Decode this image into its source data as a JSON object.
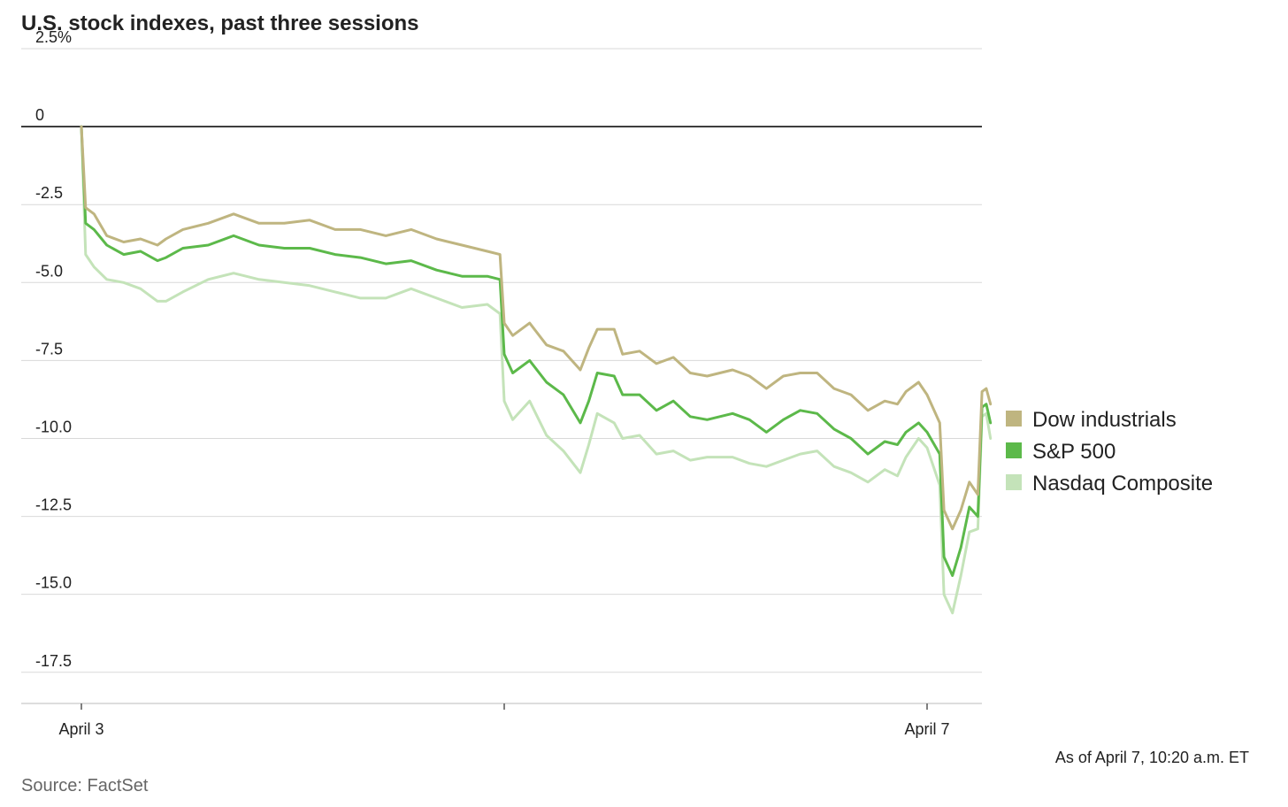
{
  "chart_data": {
    "type": "line",
    "title": "U.S. stock indexes, past three sessions",
    "y_axis": {
      "min": -18.5,
      "max": 2.5,
      "ticks": [
        2.5,
        0,
        -2.5,
        -5.0,
        -7.5,
        -10.0,
        -12.5,
        -15.0,
        -17.5
      ],
      "tick_labels": [
        "2.5%",
        "0",
        "-2.5",
        "-5.0",
        "-7.5",
        "-10.0",
        "-12.5",
        "-15.0",
        "-17.5"
      ]
    },
    "x_axis": {
      "min": 0,
      "max": 2.13,
      "ticks": [
        0,
        1,
        2
      ],
      "tick_labels": [
        "April 3",
        "",
        "April 7"
      ]
    },
    "grid": true,
    "legend_position": "right",
    "series": [
      {
        "name": "Dow industrials",
        "color": "#bfb580",
        "points": [
          [
            0,
            0
          ],
          [
            0.01,
            -2.6
          ],
          [
            0.03,
            -2.8
          ],
          [
            0.06,
            -3.5
          ],
          [
            0.1,
            -3.7
          ],
          [
            0.14,
            -3.6
          ],
          [
            0.18,
            -3.8
          ],
          [
            0.2,
            -3.6
          ],
          [
            0.24,
            -3.3
          ],
          [
            0.3,
            -3.1
          ],
          [
            0.36,
            -2.8
          ],
          [
            0.42,
            -3.1
          ],
          [
            0.48,
            -3.1
          ],
          [
            0.54,
            -3.0
          ],
          [
            0.6,
            -3.3
          ],
          [
            0.66,
            -3.3
          ],
          [
            0.72,
            -3.5
          ],
          [
            0.78,
            -3.3
          ],
          [
            0.84,
            -3.6
          ],
          [
            0.9,
            -3.8
          ],
          [
            0.96,
            -4.0
          ],
          [
            0.99,
            -4.1
          ],
          [
            1.0,
            -6.3
          ],
          [
            1.02,
            -6.7
          ],
          [
            1.06,
            -6.3
          ],
          [
            1.1,
            -7.0
          ],
          [
            1.14,
            -7.2
          ],
          [
            1.18,
            -7.8
          ],
          [
            1.2,
            -7.1
          ],
          [
            1.22,
            -6.5
          ],
          [
            1.26,
            -6.5
          ],
          [
            1.28,
            -7.3
          ],
          [
            1.32,
            -7.2
          ],
          [
            1.36,
            -7.6
          ],
          [
            1.4,
            -7.4
          ],
          [
            1.44,
            -7.9
          ],
          [
            1.48,
            -8.0
          ],
          [
            1.54,
            -7.8
          ],
          [
            1.58,
            -8.0
          ],
          [
            1.62,
            -8.4
          ],
          [
            1.66,
            -8.0
          ],
          [
            1.7,
            -7.9
          ],
          [
            1.74,
            -7.9
          ],
          [
            1.78,
            -8.4
          ],
          [
            1.82,
            -8.6
          ],
          [
            1.86,
            -9.1
          ],
          [
            1.9,
            -8.8
          ],
          [
            1.93,
            -8.9
          ],
          [
            1.95,
            -8.5
          ],
          [
            1.98,
            -8.2
          ],
          [
            2.0,
            -8.6
          ],
          [
            2.03,
            -9.5
          ],
          [
            2.04,
            -12.3
          ],
          [
            2.06,
            -12.9
          ],
          [
            2.08,
            -12.3
          ],
          [
            2.1,
            -11.4
          ],
          [
            2.12,
            -11.8
          ],
          [
            2.13,
            -8.5
          ],
          [
            2.14,
            -8.4
          ],
          [
            2.15,
            -8.9
          ]
        ]
      },
      {
        "name": "S&P 500",
        "color": "#5cb94a",
        "points": [
          [
            0,
            0
          ],
          [
            0.01,
            -3.1
          ],
          [
            0.03,
            -3.3
          ],
          [
            0.06,
            -3.8
          ],
          [
            0.1,
            -4.1
          ],
          [
            0.14,
            -4.0
          ],
          [
            0.18,
            -4.3
          ],
          [
            0.2,
            -4.2
          ],
          [
            0.24,
            -3.9
          ],
          [
            0.3,
            -3.8
          ],
          [
            0.36,
            -3.5
          ],
          [
            0.42,
            -3.8
          ],
          [
            0.48,
            -3.9
          ],
          [
            0.54,
            -3.9
          ],
          [
            0.6,
            -4.1
          ],
          [
            0.66,
            -4.2
          ],
          [
            0.72,
            -4.4
          ],
          [
            0.78,
            -4.3
          ],
          [
            0.84,
            -4.6
          ],
          [
            0.9,
            -4.8
          ],
          [
            0.96,
            -4.8
          ],
          [
            0.99,
            -4.9
          ],
          [
            1.0,
            -7.3
          ],
          [
            1.02,
            -7.9
          ],
          [
            1.06,
            -7.5
          ],
          [
            1.1,
            -8.2
          ],
          [
            1.14,
            -8.6
          ],
          [
            1.18,
            -9.5
          ],
          [
            1.2,
            -8.8
          ],
          [
            1.22,
            -7.9
          ],
          [
            1.26,
            -8.0
          ],
          [
            1.28,
            -8.6
          ],
          [
            1.32,
            -8.6
          ],
          [
            1.36,
            -9.1
          ],
          [
            1.4,
            -8.8
          ],
          [
            1.44,
            -9.3
          ],
          [
            1.48,
            -9.4
          ],
          [
            1.54,
            -9.2
          ],
          [
            1.58,
            -9.4
          ],
          [
            1.62,
            -9.8
          ],
          [
            1.66,
            -9.4
          ],
          [
            1.7,
            -9.1
          ],
          [
            1.74,
            -9.2
          ],
          [
            1.78,
            -9.7
          ],
          [
            1.82,
            -10.0
          ],
          [
            1.86,
            -10.5
          ],
          [
            1.9,
            -10.1
          ],
          [
            1.93,
            -10.2
          ],
          [
            1.95,
            -9.8
          ],
          [
            1.98,
            -9.5
          ],
          [
            2.0,
            -9.8
          ],
          [
            2.03,
            -10.5
          ],
          [
            2.04,
            -13.8
          ],
          [
            2.06,
            -14.4
          ],
          [
            2.08,
            -13.5
          ],
          [
            2.1,
            -12.2
          ],
          [
            2.12,
            -12.5
          ],
          [
            2.13,
            -9.0
          ],
          [
            2.14,
            -8.9
          ],
          [
            2.15,
            -9.5
          ]
        ]
      },
      {
        "name": "Nasdaq Composite",
        "color": "#c4e3b9",
        "points": [
          [
            0,
            0
          ],
          [
            0.01,
            -4.1
          ],
          [
            0.03,
            -4.5
          ],
          [
            0.06,
            -4.9
          ],
          [
            0.1,
            -5.0
          ],
          [
            0.14,
            -5.2
          ],
          [
            0.18,
            -5.6
          ],
          [
            0.2,
            -5.6
          ],
          [
            0.24,
            -5.3
          ],
          [
            0.3,
            -4.9
          ],
          [
            0.36,
            -4.7
          ],
          [
            0.42,
            -4.9
          ],
          [
            0.48,
            -5.0
          ],
          [
            0.54,
            -5.1
          ],
          [
            0.6,
            -5.3
          ],
          [
            0.66,
            -5.5
          ],
          [
            0.72,
            -5.5
          ],
          [
            0.78,
            -5.2
          ],
          [
            0.84,
            -5.5
          ],
          [
            0.9,
            -5.8
          ],
          [
            0.96,
            -5.7
          ],
          [
            0.99,
            -6.0
          ],
          [
            1.0,
            -8.8
          ],
          [
            1.02,
            -9.4
          ],
          [
            1.06,
            -8.8
          ],
          [
            1.1,
            -9.9
          ],
          [
            1.14,
            -10.4
          ],
          [
            1.18,
            -11.1
          ],
          [
            1.2,
            -10.2
          ],
          [
            1.22,
            -9.2
          ],
          [
            1.26,
            -9.5
          ],
          [
            1.28,
            -10.0
          ],
          [
            1.32,
            -9.9
          ],
          [
            1.36,
            -10.5
          ],
          [
            1.4,
            -10.4
          ],
          [
            1.44,
            -10.7
          ],
          [
            1.48,
            -10.6
          ],
          [
            1.54,
            -10.6
          ],
          [
            1.58,
            -10.8
          ],
          [
            1.62,
            -10.9
          ],
          [
            1.66,
            -10.7
          ],
          [
            1.7,
            -10.5
          ],
          [
            1.74,
            -10.4
          ],
          [
            1.78,
            -10.9
          ],
          [
            1.82,
            -11.1
          ],
          [
            1.86,
            -11.4
          ],
          [
            1.9,
            -11.0
          ],
          [
            1.93,
            -11.2
          ],
          [
            1.95,
            -10.6
          ],
          [
            1.98,
            -10.0
          ],
          [
            2.0,
            -10.3
          ],
          [
            2.03,
            -11.5
          ],
          [
            2.04,
            -15.0
          ],
          [
            2.06,
            -15.6
          ],
          [
            2.08,
            -14.4
          ],
          [
            2.1,
            -13.0
          ],
          [
            2.12,
            -12.9
          ],
          [
            2.13,
            -9.3
          ],
          [
            2.14,
            -9.2
          ],
          [
            2.15,
            -10.0
          ]
        ]
      }
    ],
    "note": "As of April 7, 10:20 a.m. ET",
    "source": "Source: FactSet"
  }
}
